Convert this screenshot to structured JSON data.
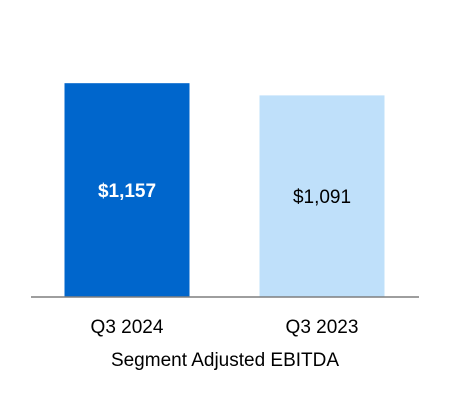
{
  "chart_data": {
    "type": "bar",
    "categories": [
      "Q3 2024",
      "Q3 2023"
    ],
    "values": [
      1157,
      1091
    ],
    "data_labels": [
      "$1,157",
      "$1,091"
    ],
    "xlabel": "Segment Adjusted EBITDA",
    "ylabel": "",
    "ylim": [
      0,
      1250
    ],
    "grid": false,
    "legend": "none",
    "colors": {
      "bars": [
        "#0066CC",
        "#BFE0FA"
      ],
      "label_text": [
        "#FFFFFF",
        "#000000"
      ],
      "axis": "#7F7F7F"
    }
  }
}
